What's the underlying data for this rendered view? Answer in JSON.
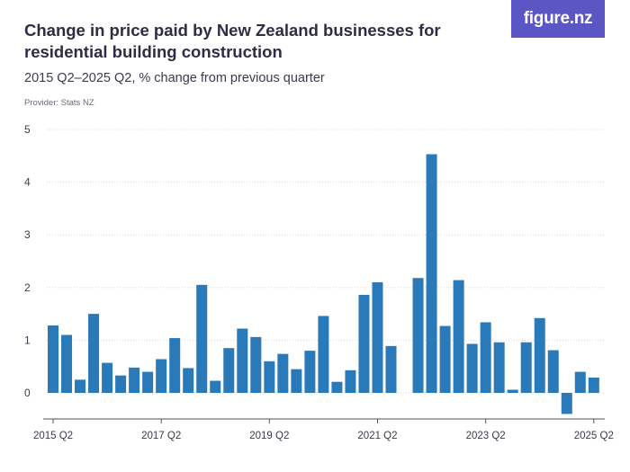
{
  "header": {
    "title": "Change in price paid by New Zealand businesses for residential building construction",
    "subtitle": "2015 Q2–2025 Q2, % change from previous quarter",
    "provider": "Provider: Stats NZ",
    "logo_text": "figure.nz"
  },
  "colors": {
    "bar": "#2a7ab9",
    "logo_bg": "#5c55c4",
    "grid": "#d6d6d6",
    "axis": "#555555"
  },
  "chart_data": {
    "type": "bar",
    "title": "Change in price paid by New Zealand businesses for residential building construction",
    "subtitle": "2015 Q2–2025 Q2, % change from previous quarter",
    "xlabel": "",
    "ylabel": "",
    "ylim": [
      -0.4,
      5
    ],
    "yticks": [
      0,
      1,
      2,
      3,
      4,
      5
    ],
    "grid": true,
    "xtick_labels": [
      "2015 Q2",
      "2017 Q2",
      "2019 Q2",
      "2021 Q2",
      "2023 Q2",
      "2025 Q2"
    ],
    "categories": [
      "2015 Q2",
      "2015 Q3",
      "2015 Q4",
      "2016 Q1",
      "2016 Q2",
      "2016 Q3",
      "2016 Q4",
      "2017 Q1",
      "2017 Q2",
      "2017 Q3",
      "2017 Q4",
      "2018 Q1",
      "2018 Q2",
      "2018 Q3",
      "2018 Q4",
      "2019 Q1",
      "2019 Q2",
      "2019 Q3",
      "2019 Q4",
      "2020 Q1",
      "2020 Q2",
      "2020 Q3",
      "2020 Q4",
      "2021 Q1",
      "2021 Q2",
      "2021 Q3",
      "2021 Q4",
      "2022 Q1",
      "2022 Q2",
      "2022 Q3",
      "2022 Q4",
      "2023 Q1",
      "2023 Q2",
      "2023 Q3",
      "2023 Q4",
      "2024 Q1",
      "2024 Q2",
      "2024 Q3",
      "2024 Q4",
      "2025 Q1",
      "2025 Q2"
    ],
    "values": [
      1.28,
      1.1,
      0.25,
      1.5,
      0.57,
      0.33,
      0.48,
      0.4,
      0.64,
      1.04,
      0.47,
      2.05,
      0.23,
      0.85,
      1.22,
      1.06,
      0.6,
      0.74,
      0.45,
      0.8,
      1.46,
      0.21,
      0.43,
      1.86,
      2.1,
      0.89,
      null,
      2.18,
      4.53,
      1.27,
      2.14,
      0.93,
      1.34,
      0.96,
      0.06,
      0.96,
      1.42,
      0.81,
      -0.4,
      0.4,
      0.29
    ]
  }
}
